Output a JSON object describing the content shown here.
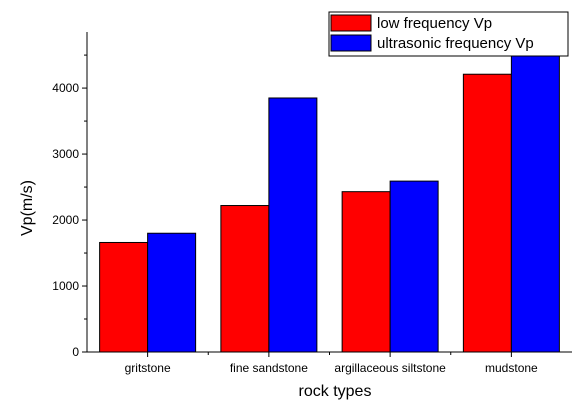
{
  "chart_data": {
    "type": "bar",
    "title": "",
    "xlabel": "rock types",
    "ylabel": "Vp(m/s)",
    "categories": [
      "gritstone",
      "fine sandstone",
      "argillaceous siltstone",
      "mudstone"
    ],
    "series": [
      {
        "name": "low frequency Vp",
        "color": "#ff0000",
        "values": [
          1660,
          2220,
          2430,
          4210
        ]
      },
      {
        "name": "ultrasonic frequency Vp",
        "color": "#0000ff",
        "values": [
          1800,
          3850,
          2590,
          4560
        ]
      }
    ],
    "ylim": [
      0,
      4850
    ],
    "yticks": [
      0,
      1000,
      2000,
      3000,
      4000
    ],
    "grid": false,
    "legend_position": "top-right"
  }
}
